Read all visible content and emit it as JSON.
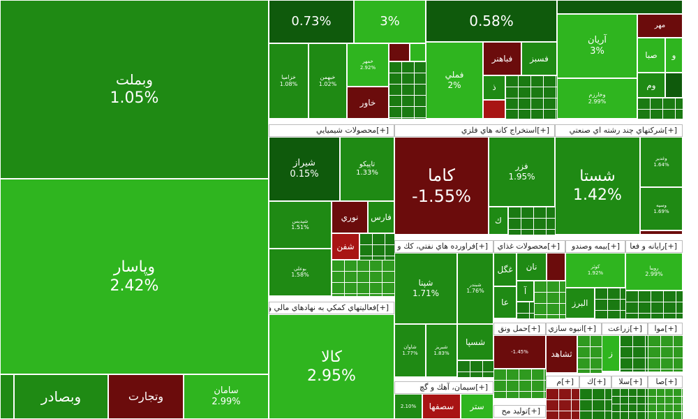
{
  "colors": {
    "dark_green": "#0f5a0c",
    "mid_green": "#1f8a14",
    "light_green": "#2fb51f",
    "dark_red": "#6b0c0c",
    "red": "#a81414",
    "header_bg": "#ffffff"
  },
  "tiles": {
    "vabemellat": {
      "name": "وبملت",
      "pct": "1.05%"
    },
    "vapasar": {
      "name": "وپاسار",
      "pct": "2.42%"
    },
    "vabsader": {
      "name": "وبصادر"
    },
    "vatejarat": {
      "name": "وتجارت"
    },
    "saman": {
      "name": "سامان",
      "pct": "2.99%"
    },
    "top_a": {
      "pct": "0.73%"
    },
    "top_b": {
      "pct": "3%"
    },
    "top_c": {
      "pct": "0.58%"
    },
    "khazamia": {
      "name": "خزاميا",
      "pct": "1.08%"
    },
    "khabin": {
      "name": "خبهمن",
      "pct": "1.02%"
    },
    "khamehr": {
      "name": "خمهر",
      "pct": "2.92%"
    },
    "khavar": {
      "name": "خاور"
    },
    "fameli": {
      "name": "فملي",
      "pct": "2%"
    },
    "fabahonar": {
      "name": "فباهنر"
    },
    "fasaz": {
      "name": "فسبز"
    },
    "fa_small": {
      "name": "ذ"
    },
    "aryan": {
      "name": "آريان",
      "pct": "3%"
    },
    "vakharazm": {
      "name": "وخارزم",
      "pct": "2.99%"
    },
    "mehr": {
      "name": "مهر"
    },
    "saba": {
      "name": "صبا"
    },
    "vo": {
      "name": "و"
    },
    "vom": {
      "name": "وم"
    },
    "shiraz": {
      "name": "شيراز",
      "pct": "0.15%"
    },
    "tapiko": {
      "name": "تاپيكو",
      "pct": "1.33%"
    },
    "shepdis": {
      "name": "شپديس",
      "pct": "1.51%"
    },
    "nouri": {
      "name": "نوري"
    },
    "fars": {
      "name": "فارس"
    },
    "shafan": {
      "name": "شفن"
    },
    "boali": {
      "name": "بوعلي",
      "pct": "1.58%"
    },
    "kama": {
      "name": "كاما",
      "pct": "-1.55%"
    },
    "fazar": {
      "name": "فزر",
      "pct": "1.95%"
    },
    "kaf": {
      "name": "ك"
    },
    "shasta": {
      "name": "شستا",
      "pct": "1.42%"
    },
    "vaghadir": {
      "name": "وغدير",
      "pct": "1.64%"
    },
    "vasina": {
      "name": "وسپه",
      "pct": "1.69%"
    },
    "shapna": {
      "name": "شپنا",
      "pct": "1.71%"
    },
    "shebandar": {
      "name": "شبندر",
      "pct": "1.76%"
    },
    "shesapa": {
      "name": "شسپا"
    },
    "shafra": {
      "name": "شاوان",
      "pct": "1.77%"
    },
    "shiran": {
      "name": "شبريز",
      "pct": "1.83%"
    },
    "ghanat": {
      "name": "نان"
    },
    "ghagol": {
      "name": "غگل"
    },
    "ghaa": {
      "name": "عا"
    },
    "ghalf": {
      "name": "آ"
    },
    "kovar": {
      "name": "كوثر",
      "pct": "1.92%"
    },
    "alborz": {
      "name": "البرز"
    },
    "ryupa": {
      "name": "رويبا",
      "pct": "2.99%"
    },
    "kala": {
      "name": "كالا",
      "pct": "2.95%"
    },
    "hamlo_small": {
      "pct": "-1.45%"
    },
    "tashahed": {
      "name": "ثشاهد"
    },
    "zeraat_small": {
      "name": "ز"
    },
    "sasofha": {
      "name": "سصفها"
    },
    "sastar": {
      "name": "ستر"
    },
    "sas_small": {
      "pct": "2.10%"
    }
  },
  "sectors": {
    "petrochem": "محصولات شيميايي",
    "metals": "استخراج كانه هاي فلزي",
    "multi": "شركتهاي چند رشته اي صنعتي",
    "refinery": "فراورده هاي نفتي، كك و",
    "food": "محصولات غذاي",
    "insurance": "بيمه وصندو",
    "it": "رايانه و فعا",
    "finance_aux": "فعاليتهاي كمكي به نهادهاي مالي وا",
    "transport": "حمل ونق",
    "construction": "انبوه سازي",
    "agri": "زراعت",
    "mavad": "موا",
    "cement": "سيمان، آهك و گچ",
    "tolid": "توليد مح",
    "s1": "م",
    "s2": "ك",
    "s3": "سلا",
    "s4": "صا",
    "plus": "[+]"
  }
}
